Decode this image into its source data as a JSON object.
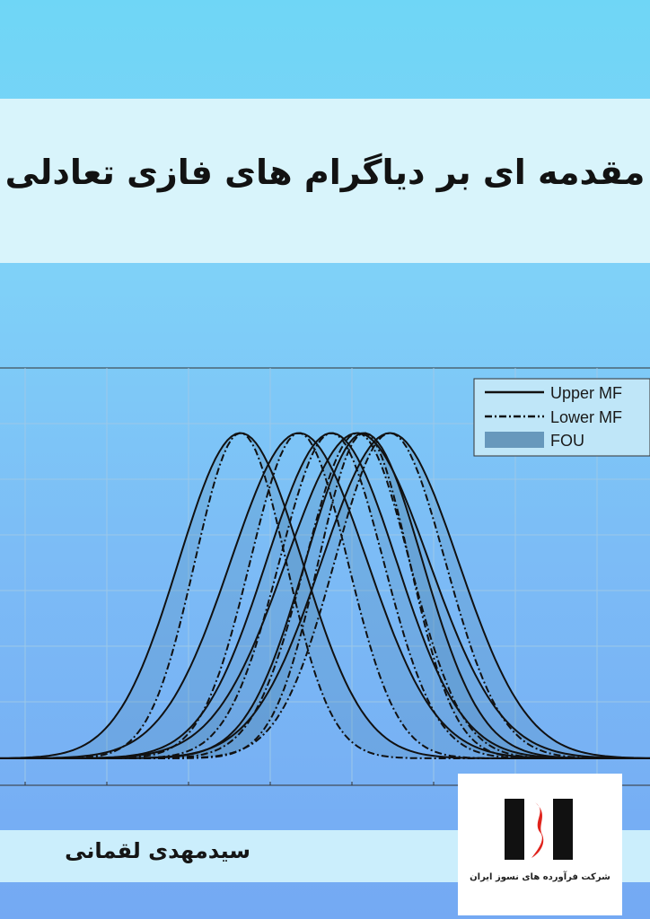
{
  "cover": {
    "title": "مقدمه ای بر دیاگرام های فازی تعادلی",
    "author": "سیدمهدی لقمانی",
    "publisher": "شرکت فرآورده های نسوز ایران"
  },
  "colors": {
    "band": "#d8f4fb",
    "fou_fill": "#4a7ea8",
    "curve": "#111111",
    "logo_red": "#e0231c",
    "logo_black": "#111111"
  },
  "chart_data": {
    "type": "line",
    "title": "",
    "xlabel": "",
    "ylabel": "",
    "legend": [
      "Upper MF",
      "Lower MF",
      "FOU"
    ],
    "legend_position": "top-right",
    "grid": true,
    "xlim": [
      0,
      10
    ],
    "ylim": [
      0,
      1.2
    ],
    "series": [
      {
        "center": 3.7,
        "upper_sigma": 0.95,
        "lower_sigma": 0.7
      },
      {
        "center": 4.6,
        "upper_sigma": 1.05,
        "lower_sigma": 0.75
      },
      {
        "center": 5.1,
        "upper_sigma": 1.0,
        "lower_sigma": 0.8
      },
      {
        "center": 5.5,
        "upper_sigma": 1.1,
        "lower_sigma": 0.8
      },
      {
        "center": 5.6,
        "upper_sigma": 0.9,
        "lower_sigma": 0.7
      },
      {
        "center": 6.0,
        "upper_sigma": 1.05,
        "lower_sigma": 0.85
      }
    ]
  }
}
